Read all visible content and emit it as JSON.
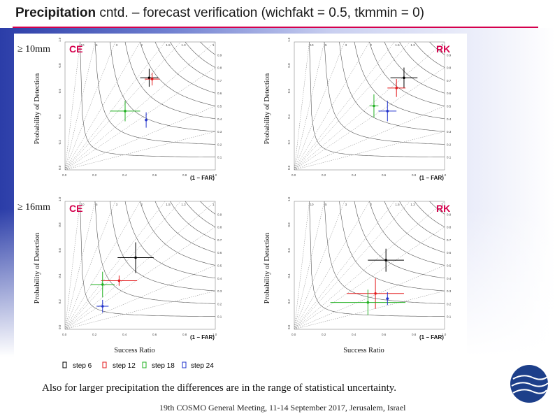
{
  "slide": {
    "title_bold": "Precipitation",
    "title_rest": " cntd. – forecast verification (wichfakt = 0.5, tkmmin = 0)",
    "caption": "Also for larger precipitation the differences are in the range of statistical uncertainty.",
    "footer": "19th COSMO General Meeting, 11-14 September 2017, Jerusalem, Israel"
  },
  "row_labels": [
    "≥ 10mm",
    "≥ 16mm"
  ],
  "legend": {
    "items": [
      {
        "label": "step 6",
        "color": "#000000"
      },
      {
        "label": "step 12",
        "color": "#e31a1c"
      },
      {
        "label": "step 18",
        "color": "#22b022"
      },
      {
        "label": "step 24",
        "color": "#2233cc"
      }
    ]
  },
  "common": {
    "ylabel": "Probability of Detection",
    "xlabel": "Success Ratio",
    "far_label": "(1 − FAR)",
    "ticks": [
      "0.0",
      "0.2",
      "0.4",
      "0.6",
      "0.8",
      "1.0"
    ],
    "csi_labels": [
      "0.1",
      "0.2",
      "0.3",
      "0.4",
      "0.5",
      "0.6",
      "0.7",
      "0.8",
      "0.9"
    ],
    "bias_labels": [
      "0.3",
      "0.5",
      "0.8",
      "1",
      "1.3",
      "1.5",
      "2",
      "3",
      "5",
      "10"
    ]
  },
  "chart_data": [
    {
      "type": "scatter",
      "title": "CE",
      "row": "≥ 10mm",
      "xlabel": "",
      "ylabel": "Probability of Detection",
      "xlim": [
        0,
        1
      ],
      "ylim": [
        0,
        1
      ],
      "series": [
        {
          "name": "step 6",
          "x": 0.56,
          "y": 0.72,
          "xerr": 0.06,
          "yerr": 0.07
        },
        {
          "name": "step 12",
          "x": 0.58,
          "y": 0.71,
          "xerr": 0.05,
          "yerr": 0.05
        },
        {
          "name": "step 18",
          "x": 0.4,
          "y": 0.46,
          "xerr": 0.1,
          "yerr": 0.08
        },
        {
          "name": "step 24",
          "x": 0.54,
          "y": 0.39,
          "xerr": 0.01,
          "yerr": 0.06
        }
      ]
    },
    {
      "type": "scatter",
      "title": "RK",
      "row": "≥ 10mm",
      "xlabel": "",
      "ylabel": "Probability of Detection",
      "xlim": [
        0,
        1
      ],
      "ylim": [
        0,
        1
      ],
      "series": [
        {
          "name": "step 6",
          "x": 0.73,
          "y": 0.72,
          "xerr": 0.09,
          "yerr": 0.08
        },
        {
          "name": "step 12",
          "x": 0.68,
          "y": 0.64,
          "xerr": 0.06,
          "yerr": 0.07
        },
        {
          "name": "step 18",
          "x": 0.53,
          "y": 0.5,
          "xerr": 0.03,
          "yerr": 0.09
        },
        {
          "name": "step 24",
          "x": 0.62,
          "y": 0.46,
          "xerr": 0.06,
          "yerr": 0.08
        }
      ]
    },
    {
      "type": "scatter",
      "title": "CE",
      "row": "≥ 16mm",
      "xlabel": "Success Ratio",
      "ylabel": "Probability of Detection",
      "xlim": [
        0,
        1
      ],
      "ylim": [
        0,
        1
      ],
      "series": [
        {
          "name": "step 6",
          "x": 0.47,
          "y": 0.56,
          "xerr": 0.12,
          "yerr": 0.12
        },
        {
          "name": "step 12",
          "x": 0.36,
          "y": 0.38,
          "xerr": 0.12,
          "yerr": 0.04
        },
        {
          "name": "step 18",
          "x": 0.25,
          "y": 0.35,
          "xerr": 0.08,
          "yerr": 0.1
        },
        {
          "name": "step 24",
          "x": 0.25,
          "y": 0.18,
          "xerr": 0.04,
          "yerr": 0.05
        }
      ]
    },
    {
      "type": "scatter",
      "title": "RK",
      "row": "≥ 16mm",
      "xlabel": "Success Ratio",
      "ylabel": "Probability of Detection",
      "xlim": [
        0,
        1
      ],
      "ylim": [
        0,
        1
      ],
      "series": [
        {
          "name": "step 6",
          "x": 0.61,
          "y": 0.54,
          "xerr": 0.12,
          "yerr": 0.09
        },
        {
          "name": "step 12",
          "x": 0.54,
          "y": 0.28,
          "xerr": 0.19,
          "yerr": 0.12
        },
        {
          "name": "step 18",
          "x": 0.49,
          "y": 0.21,
          "xerr": 0.25,
          "yerr": 0.1
        },
        {
          "name": "step 24",
          "x": 0.62,
          "y": 0.24,
          "xerr": 0.01,
          "yerr": 0.05
        }
      ]
    }
  ]
}
